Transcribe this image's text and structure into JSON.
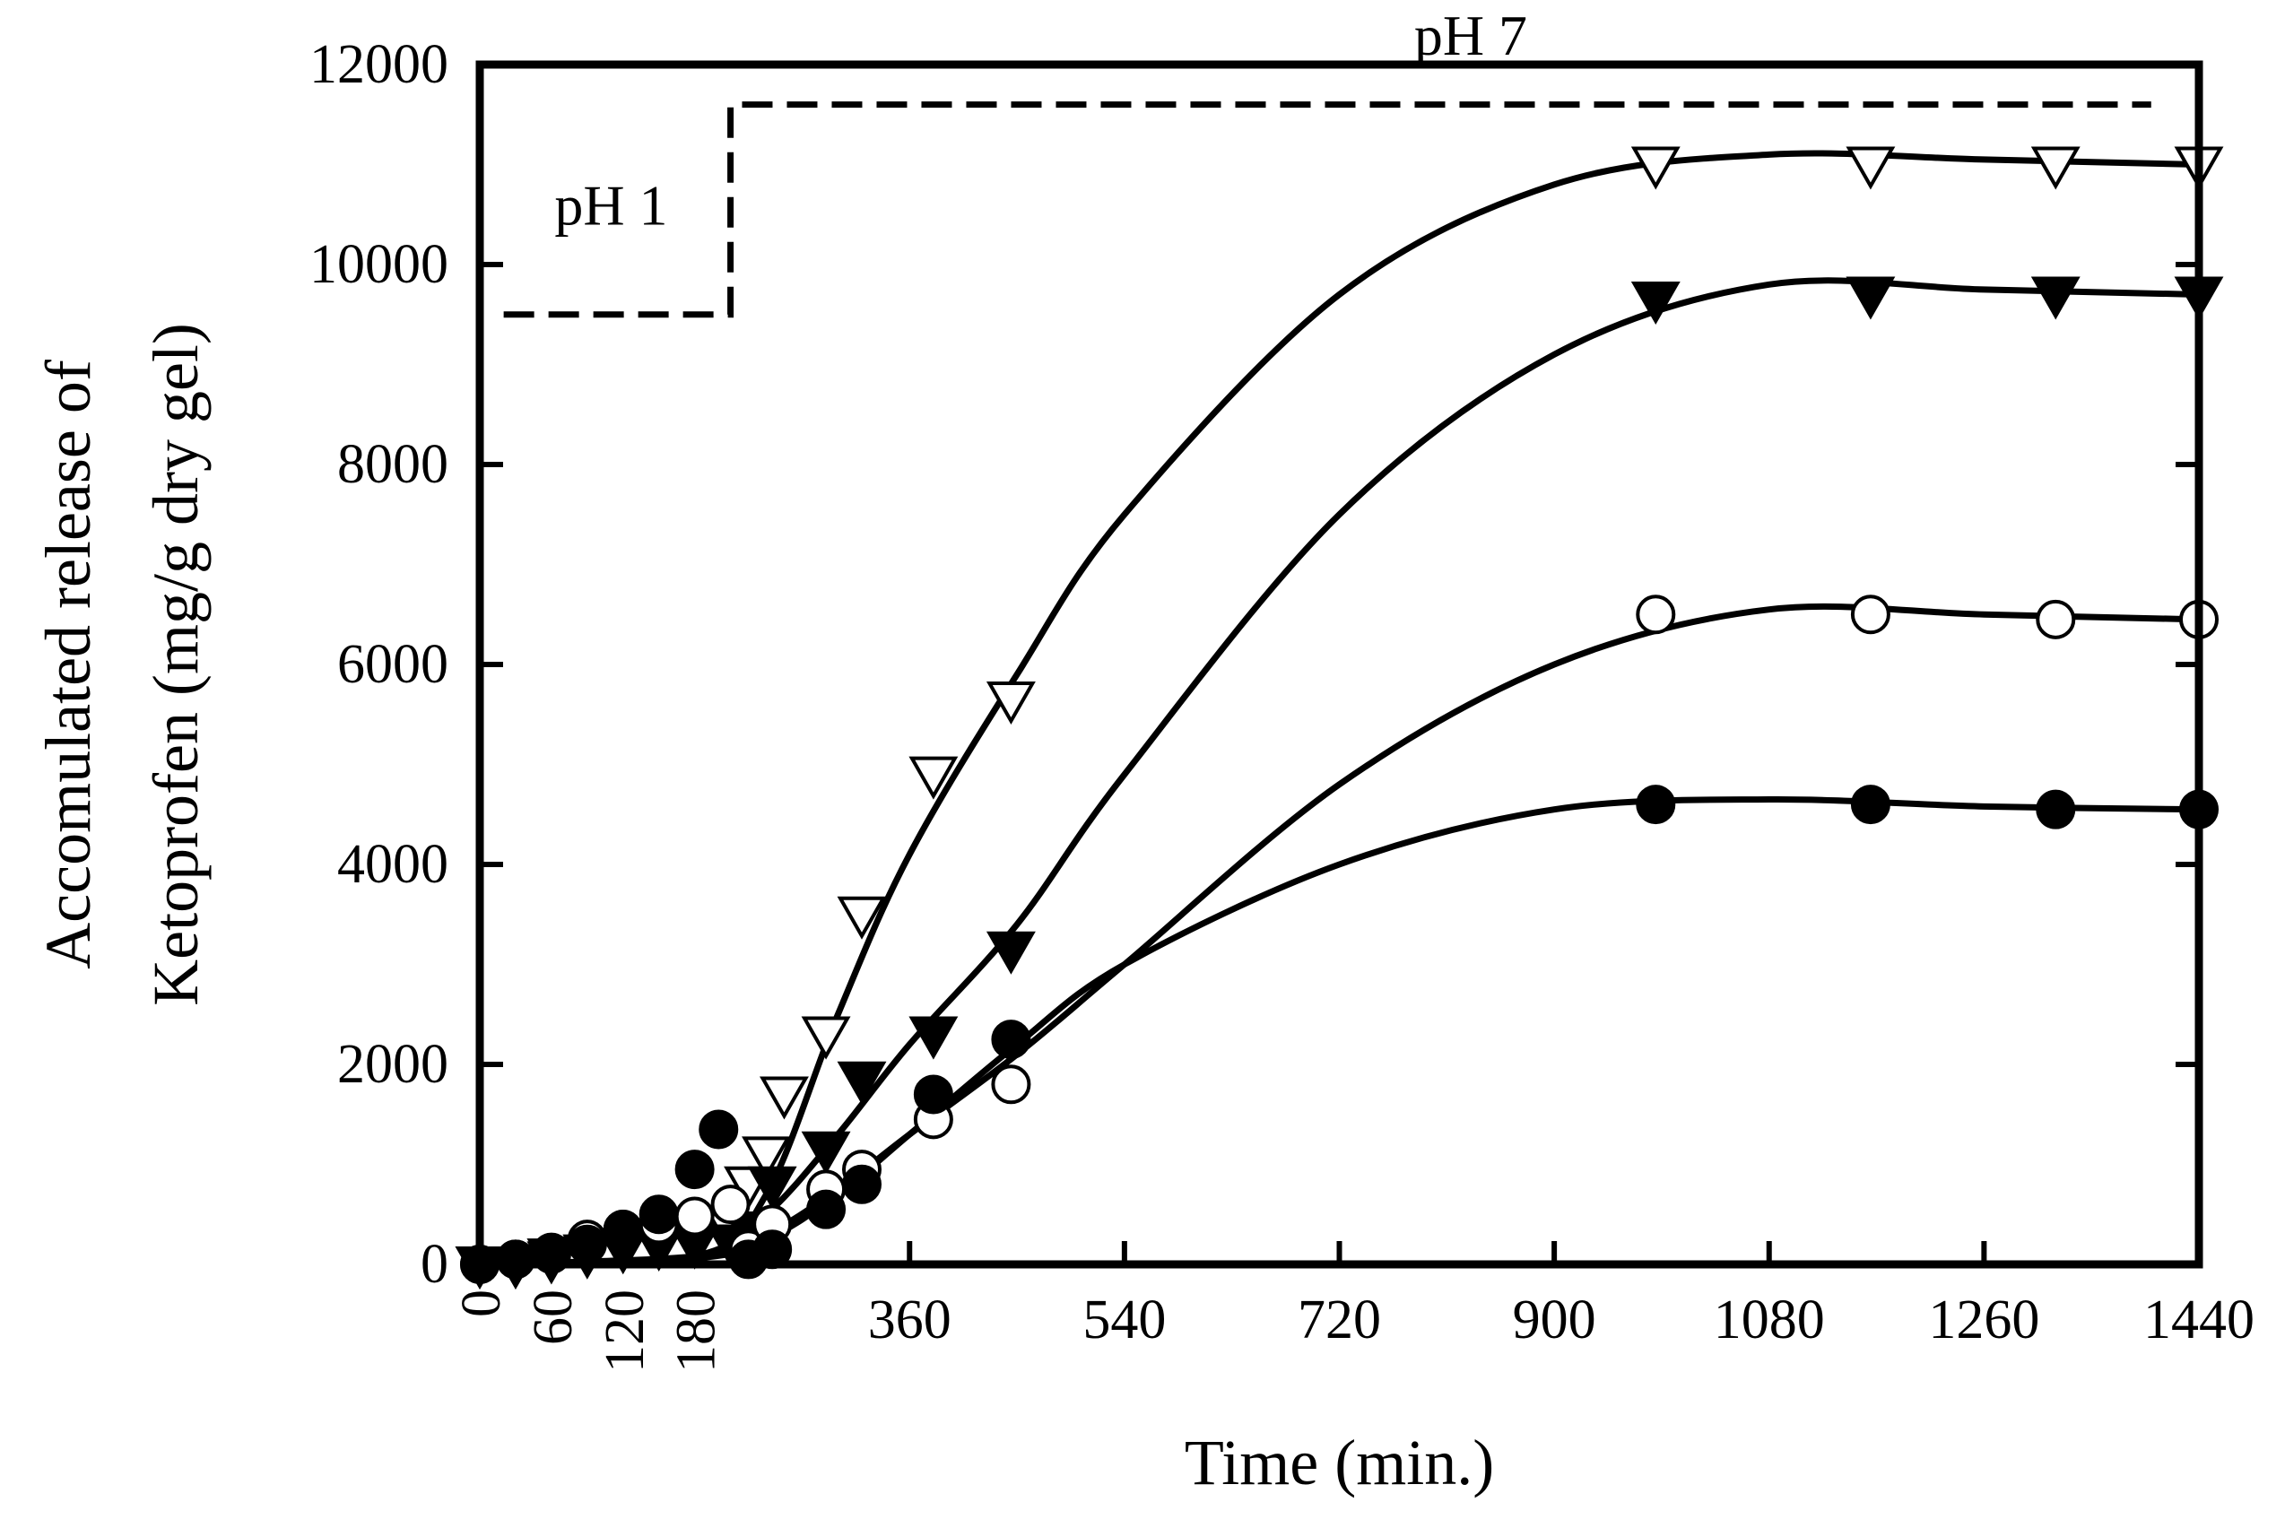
{
  "chart_data": {
    "type": "line",
    "title": "",
    "xlabel": "Time (min.)",
    "ylabel_line1": "Accomulated release of",
    "ylabel_line2": "Ketoprofen (mg/g dry gel)",
    "xlim": [
      0,
      1440
    ],
    "ylim": [
      0,
      12000
    ],
    "x_ticks": [
      0,
      60,
      120,
      180,
      360,
      540,
      720,
      900,
      1080,
      1260,
      1440
    ],
    "x_tick_labels": [
      "0",
      "60",
      "120",
      "180",
      "360",
      "540",
      "720",
      "900",
      "1080",
      "1260",
      "1440"
    ],
    "x_tick_labels_rotated": [
      "0",
      "60",
      "120",
      "180"
    ],
    "y_ticks": [
      0,
      2000,
      4000,
      6000,
      8000,
      10000,
      12000
    ],
    "y_tick_labels": [
      "0",
      "2000",
      "4000",
      "6000",
      "8000",
      "10000",
      "12000"
    ],
    "grid": false,
    "annotations": [
      {
        "text": "pH 1",
        "x": 110,
        "y": 10400
      },
      {
        "text": "pH 7",
        "x": 830,
        "y": 12100
      }
    ],
    "ph_step_line": {
      "style": "dashed",
      "points": [
        [
          20,
          9500
        ],
        [
          210,
          9500
        ],
        [
          210,
          11600
        ],
        [
          1400,
          11600
        ]
      ]
    },
    "series": [
      {
        "name": "open-triangle-down",
        "marker": "triangle-down",
        "fill": "open",
        "points": [
          [
            0,
            0
          ],
          [
            30,
            0
          ],
          [
            60,
            80
          ],
          [
            90,
            120
          ],
          [
            120,
            180
          ],
          [
            150,
            220
          ],
          [
            180,
            300
          ],
          [
            210,
            350
          ],
          [
            225,
            800
          ],
          [
            240,
            1100
          ],
          [
            255,
            1700
          ],
          [
            290,
            2300
          ],
          [
            320,
            3500
          ],
          [
            380,
            4900
          ],
          [
            445,
            5650
          ],
          [
            985,
            11000
          ],
          [
            1165,
            11000
          ],
          [
            1320,
            11000
          ],
          [
            1440,
            11000
          ]
        ],
        "curve": [
          [
            0,
            0
          ],
          [
            180,
            80
          ],
          [
            240,
            700
          ],
          [
            300,
            2500
          ],
          [
            360,
            4100
          ],
          [
            450,
            5900
          ],
          [
            540,
            7500
          ],
          [
            720,
            9700
          ],
          [
            900,
            10800
          ],
          [
            1080,
            11100
          ],
          [
            1260,
            11050
          ],
          [
            1440,
            11000
          ]
        ]
      },
      {
        "name": "filled-triangle-down",
        "marker": "triangle-down",
        "fill": "solid",
        "points": [
          [
            0,
            0
          ],
          [
            30,
            0
          ],
          [
            60,
            50
          ],
          [
            90,
            100
          ],
          [
            120,
            150
          ],
          [
            150,
            180
          ],
          [
            180,
            200
          ],
          [
            210,
            220
          ],
          [
            225,
            350
          ],
          [
            245,
            800
          ],
          [
            290,
            1150
          ],
          [
            320,
            1850
          ],
          [
            380,
            2300
          ],
          [
            445,
            3150
          ],
          [
            985,
            9650
          ],
          [
            1165,
            9700
          ],
          [
            1320,
            9700
          ],
          [
            1440,
            9700
          ]
        ],
        "curve": [
          [
            0,
            0
          ],
          [
            180,
            60
          ],
          [
            240,
            500
          ],
          [
            300,
            1300
          ],
          [
            360,
            2200
          ],
          [
            450,
            3400
          ],
          [
            540,
            4900
          ],
          [
            720,
            7500
          ],
          [
            900,
            9100
          ],
          [
            1080,
            9800
          ],
          [
            1260,
            9750
          ],
          [
            1440,
            9700
          ]
        ]
      },
      {
        "name": "open-circle",
        "marker": "circle",
        "fill": "open",
        "points": [
          [
            0,
            0
          ],
          [
            30,
            50
          ],
          [
            60,
            120
          ],
          [
            90,
            250
          ],
          [
            120,
            350
          ],
          [
            150,
            400
          ],
          [
            180,
            480
          ],
          [
            210,
            600
          ],
          [
            225,
            150
          ],
          [
            245,
            400
          ],
          [
            290,
            750
          ],
          [
            320,
            950
          ],
          [
            380,
            1450
          ],
          [
            445,
            1800
          ],
          [
            985,
            6500
          ],
          [
            1165,
            6500
          ],
          [
            1320,
            6450
          ],
          [
            1440,
            6450
          ]
        ],
        "curve": [
          [
            0,
            0
          ],
          [
            180,
            80
          ],
          [
            240,
            300
          ],
          [
            300,
            750
          ],
          [
            360,
            1300
          ],
          [
            450,
            2100
          ],
          [
            540,
            3000
          ],
          [
            720,
            4800
          ],
          [
            900,
            6000
          ],
          [
            1080,
            6550
          ],
          [
            1260,
            6500
          ],
          [
            1440,
            6450
          ]
        ]
      },
      {
        "name": "filled-circle",
        "marker": "circle",
        "fill": "solid",
        "points": [
          [
            0,
            0
          ],
          [
            30,
            50
          ],
          [
            60,
            100
          ],
          [
            90,
            200
          ],
          [
            120,
            350
          ],
          [
            150,
            500
          ],
          [
            180,
            950
          ],
          [
            200,
            1350
          ],
          [
            225,
            50
          ],
          [
            245,
            150
          ],
          [
            290,
            550
          ],
          [
            320,
            800
          ],
          [
            380,
            1700
          ],
          [
            445,
            2250
          ],
          [
            985,
            4600
          ],
          [
            1165,
            4600
          ],
          [
            1320,
            4550
          ],
          [
            1440,
            4550
          ]
        ],
        "curve": [
          [
            0,
            0
          ],
          [
            180,
            60
          ],
          [
            240,
            250
          ],
          [
            300,
            700
          ],
          [
            360,
            1300
          ],
          [
            450,
            2200
          ],
          [
            540,
            3000
          ],
          [
            720,
            4000
          ],
          [
            900,
            4550
          ],
          [
            1080,
            4650
          ],
          [
            1260,
            4580
          ],
          [
            1440,
            4550
          ]
        ]
      }
    ]
  }
}
